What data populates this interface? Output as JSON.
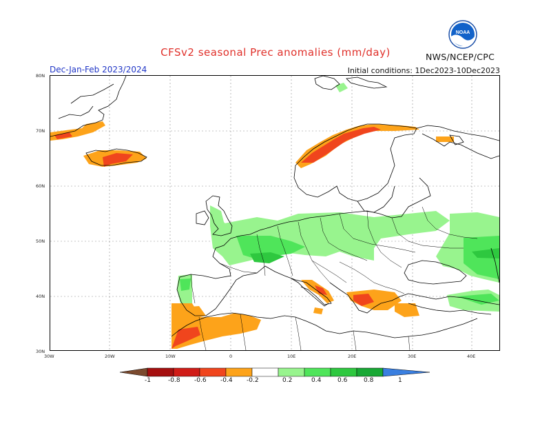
{
  "title": "CFSv2 seasonal Prec anomalies (mm/day)",
  "period": "Dec-Jan-Feb 2023/2024",
  "initial_conditions": "Initial conditions: 1Dec2023-10Dec2023",
  "agency": "NWS/NCEP/CPC",
  "logo_text": "NOAA",
  "lat_labels": [
    "80N",
    "70N",
    "60N",
    "50N",
    "40N",
    "30N"
  ],
  "lon_labels": [
    "30W",
    "20W",
    "10W",
    "0",
    "10E",
    "20E",
    "30E",
    "40E"
  ],
  "colorbar": {
    "labels": [
      "-1",
      "-0.8",
      "-0.6",
      "-0.4",
      "-0.2",
      "0.2",
      "0.4",
      "0.6",
      "0.8",
      "1"
    ],
    "colors": [
      "#7b4a2e",
      "#a50f0f",
      "#d01c17",
      "#f0451d",
      "#fda31a",
      "#ffffff",
      "#98f48e",
      "#4fe55a",
      "#2ec83f",
      "#18a834",
      "#3a7fe0"
    ]
  },
  "colors": {
    "title": "#e0302a",
    "period": "#1f35c6",
    "dry_light": "#fda31a",
    "dry_mid": "#f0451d",
    "wet_light": "#98f48e",
    "wet_mid": "#4fe55a",
    "wet_dark": "#2ec83f"
  }
}
